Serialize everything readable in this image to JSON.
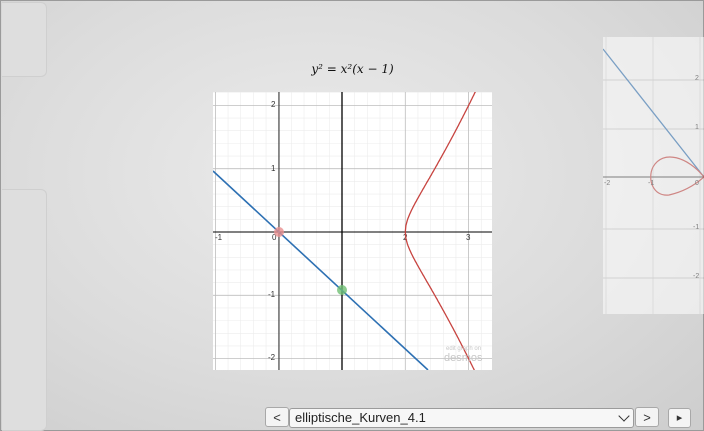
{
  "slide": {
    "formula_text": "y² = x²(x − 1)"
  },
  "graph": {
    "x_ticks": [
      "-1",
      "0",
      "2",
      "3"
    ],
    "y_ticks": [
      "2",
      "1",
      "-1",
      "-2"
    ],
    "watermark_line1": "edit graph on",
    "watermark_line2": "desmos",
    "colors": {
      "curve": "#c74440",
      "line": "#2d70b3",
      "point_red": "#e88f8f",
      "point_green": "#6fbf73"
    }
  },
  "preview": {
    "x_ticks": [
      "-2",
      "-1",
      "0"
    ],
    "y_ticks": [
      "2",
      "1",
      "-1",
      "-2"
    ]
  },
  "navigation": {
    "prev_label": "<",
    "next_label": ">",
    "play_label": "▸",
    "selected_slide": "elliptische_Kurven_4.1"
  }
}
